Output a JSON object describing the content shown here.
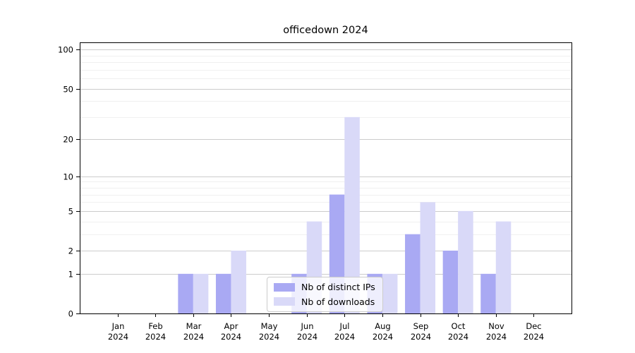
{
  "chart_data": {
    "type": "bar",
    "title": "officedown 2024",
    "categories": [
      "Jan",
      "Feb",
      "Mar",
      "Apr",
      "May",
      "Jun",
      "Jul",
      "Aug",
      "Sep",
      "Oct",
      "Nov",
      "Dec"
    ],
    "x_tick_year": "2024",
    "series": [
      {
        "name": "Nb of distinct IPs",
        "color": "#a9a9f3",
        "values": [
          0,
          0,
          1,
          1,
          0,
          1,
          7,
          1,
          3,
          2,
          1,
          0
        ]
      },
      {
        "name": "Nb of downloads",
        "color": "#d9d9f8",
        "values": [
          0,
          0,
          1,
          2,
          0,
          4,
          30,
          1,
          6,
          5,
          4,
          0
        ]
      }
    ],
    "y_axis": {
      "scale": "log1p",
      "ticks": [
        0,
        1,
        2,
        5,
        10,
        20,
        50,
        100
      ],
      "minor_gridlines": [
        3,
        4,
        6,
        7,
        8,
        9,
        30,
        40,
        60,
        70,
        80,
        90
      ],
      "range": [
        0,
        113
      ]
    },
    "x_axis": {
      "label": "",
      "tick_count": 12
    },
    "grid": true,
    "legend_position": "lower-center-inside",
    "colors": {
      "major_grid": "#cccccc",
      "minor_grid": "#f0f0f0",
      "axis": "#000000",
      "tick_text": "#000000",
      "background": "#ffffff"
    }
  }
}
